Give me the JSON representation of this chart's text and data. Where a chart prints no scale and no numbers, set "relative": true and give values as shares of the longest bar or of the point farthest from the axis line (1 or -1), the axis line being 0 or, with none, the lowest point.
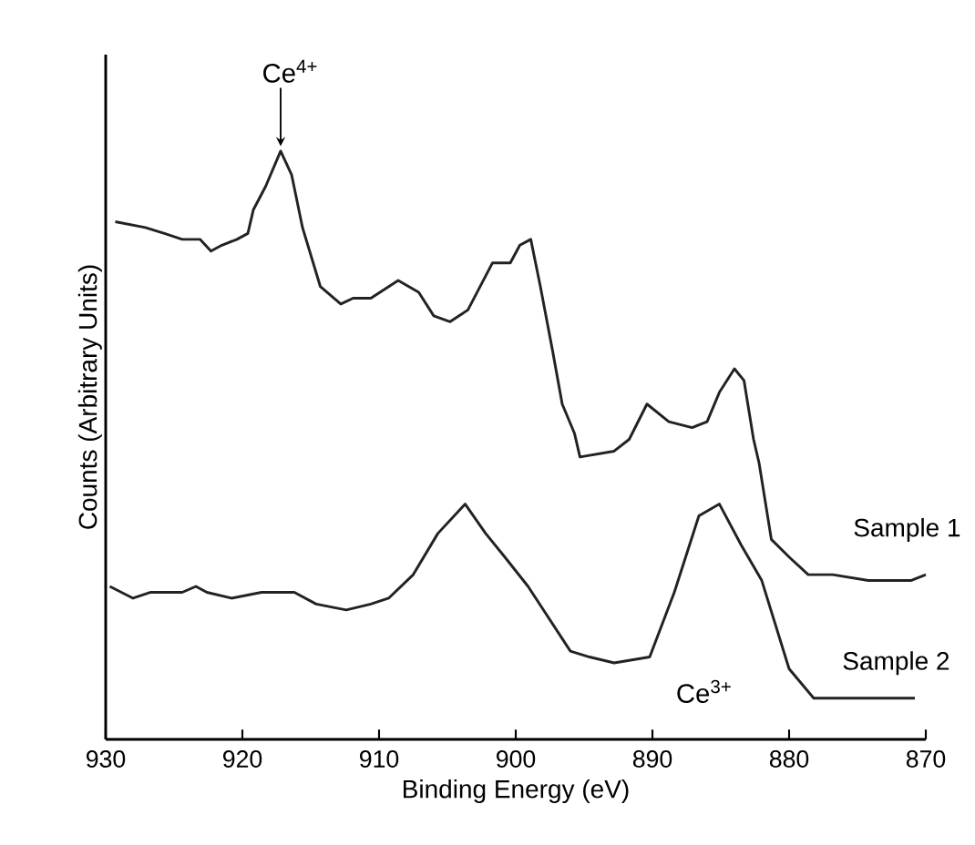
{
  "chart_data": {
    "type": "line",
    "xlabel": "Binding Energy  (eV)",
    "ylabel": "Counts (Arbitrary Units)",
    "xlim": [
      930,
      870
    ],
    "xticks": [
      930,
      920,
      910,
      900,
      890,
      880,
      870
    ],
    "relative": true,
    "grid": false,
    "marker": "none",
    "line_style": "solid",
    "series": [
      {
        "name": "Sample 1",
        "color": "#222222",
        "x": [
          929.3,
          927.1,
          925.7,
          924.4,
          923.1,
          922.3,
          921.5,
          920.4,
          919.6,
          919.2,
          918.3,
          917.2,
          916.4,
          915.6,
          914.3,
          912.8,
          911.9,
          910.6,
          908.6,
          907.1,
          906.0,
          904.8,
          903.5,
          901.7,
          900.4,
          899.7,
          898.9,
          898.2,
          897.3,
          896.6,
          895.7,
          895.3,
          892.8,
          891.7,
          890.4,
          888.8,
          887.1,
          886.0,
          885.1,
          884.0,
          883.3,
          882.6,
          882.2,
          881.3,
          880.0,
          878.6,
          876.8,
          874.2,
          872.4,
          871.1,
          870.0
        ],
        "values": [
          0.88,
          0.87,
          0.86,
          0.85,
          0.85,
          0.83,
          0.84,
          0.85,
          0.86,
          0.9,
          0.94,
          1.0,
          0.96,
          0.87,
          0.77,
          0.74,
          0.75,
          0.75,
          0.78,
          0.76,
          0.72,
          0.71,
          0.73,
          0.81,
          0.81,
          0.84,
          0.85,
          0.77,
          0.66,
          0.57,
          0.52,
          0.48,
          0.49,
          0.51,
          0.57,
          0.54,
          0.53,
          0.54,
          0.59,
          0.63,
          0.61,
          0.51,
          0.47,
          0.34,
          0.31,
          0.28,
          0.28,
          0.27,
          0.27,
          0.27,
          0.28
        ]
      },
      {
        "name": "Sample 2",
        "color": "#222222",
        "x": [
          929.7,
          928.0,
          926.7,
          924.4,
          923.4,
          922.6,
          920.8,
          918.6,
          916.2,
          914.6,
          912.4,
          910.6,
          909.3,
          907.5,
          905.7,
          903.7,
          902.2,
          900.8,
          899.1,
          896.0,
          894.6,
          892.8,
          890.2,
          888.4,
          886.6,
          885.1,
          883.5,
          882.0,
          880.0,
          878.2,
          876.0,
          873.3,
          870.8
        ],
        "values": [
          0.26,
          0.24,
          0.25,
          0.25,
          0.26,
          0.25,
          0.24,
          0.25,
          0.25,
          0.23,
          0.22,
          0.23,
          0.24,
          0.28,
          0.35,
          0.4,
          0.35,
          0.31,
          0.26,
          0.15,
          0.14,
          0.13,
          0.14,
          0.25,
          0.38,
          0.4,
          0.33,
          0.27,
          0.12,
          0.07,
          0.07,
          0.07,
          0.07
        ]
      }
    ],
    "annotations": [
      {
        "text": "Ce$^{4+}$",
        "x": 917.2,
        "y": 1.0
      },
      "Ce$^{3+}$"
    ]
  }
}
